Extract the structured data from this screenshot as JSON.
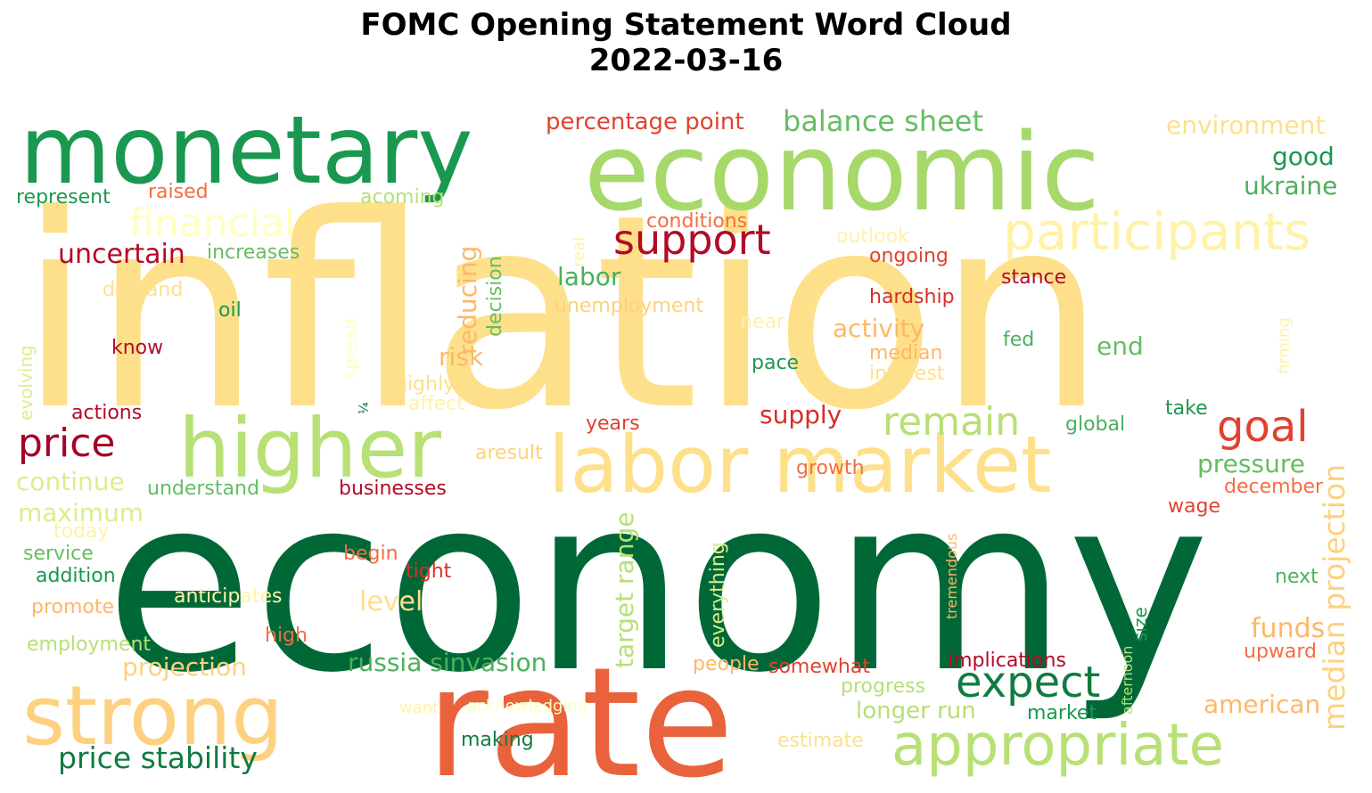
{
  "title": {
    "line1": "FOMC Opening Statement Word Cloud",
    "line2": "2022-03-16"
  },
  "words": [
    {
      "text": "inflation",
      "color": "#fee08b"
    },
    {
      "text": "economy",
      "color": "#006837"
    },
    {
      "text": "economic",
      "color": "#a6d96a"
    },
    {
      "text": "monetary",
      "color": "#1a9850"
    },
    {
      "text": "rate",
      "color": "#e9623b"
    },
    {
      "text": "higher",
      "color": "#b7e075"
    },
    {
      "text": "labor market",
      "color": "#fee08b"
    },
    {
      "text": "strong",
      "color": "#fdd17f"
    },
    {
      "text": "appropriate",
      "color": "#b7e075"
    },
    {
      "text": "participants",
      "color": "#fff2a8"
    },
    {
      "text": "financial",
      "color": "#ffffbf"
    },
    {
      "text": "support",
      "color": "#b10b26"
    },
    {
      "text": "price",
      "color": "#a50026"
    },
    {
      "text": "remain",
      "color": "#b7e075"
    },
    {
      "text": "goal",
      "color": "#e0422f"
    },
    {
      "text": "expect",
      "color": "#0f7c41"
    },
    {
      "text": "price stability",
      "color": "#0f7c41"
    },
    {
      "text": "balance sheet",
      "color": "#66bd63"
    },
    {
      "text": "percentage point",
      "color": "#e0422f"
    },
    {
      "text": "environment",
      "color": "#fee08b"
    },
    {
      "text": "good",
      "color": "#1a9850"
    },
    {
      "text": "ukraine",
      "color": "#4bb05c"
    },
    {
      "text": "represent",
      "color": "#1a9850"
    },
    {
      "text": "raised",
      "color": "#f46d43"
    },
    {
      "text": "acoming",
      "color": "#b7e075"
    },
    {
      "text": "uncertain",
      "color": "#b10b26"
    },
    {
      "text": "increases",
      "color": "#66bd63"
    },
    {
      "text": "conditions",
      "color": "#f46d43"
    },
    {
      "text": "outlook",
      "color": "#fff2a8"
    },
    {
      "text": "ongoing",
      "color": "#e0422f"
    },
    {
      "text": "stance",
      "color": "#b10b26"
    },
    {
      "text": "hardship",
      "color": "#d52f27"
    },
    {
      "text": "demand",
      "color": "#fee08b"
    },
    {
      "text": "oil",
      "color": "#1a9850"
    },
    {
      "text": "labor",
      "color": "#4bb05c"
    },
    {
      "text": "unemployment",
      "color": "#fdd17f"
    },
    {
      "text": "activity",
      "color": "#fdb768"
    },
    {
      "text": "median",
      "color": "#fdb768"
    },
    {
      "text": "interest",
      "color": "#fee08b"
    },
    {
      "text": "near",
      "color": "#fff2a8"
    },
    {
      "text": "fed",
      "color": "#4bb05c"
    },
    {
      "text": "end",
      "color": "#66bd63"
    },
    {
      "text": "know",
      "color": "#b10b26"
    },
    {
      "text": "risk",
      "color": "#fdb768"
    },
    {
      "text": "pace",
      "color": "#1a9850"
    },
    {
      "text": "highly",
      "color": "#fee08b"
    },
    {
      "text": "affect",
      "color": "#fff2a8"
    },
    {
      "text": "actions",
      "color": "#b10b26"
    },
    {
      "text": "supply",
      "color": "#d52f27"
    },
    {
      "text": "years",
      "color": "#e0422f"
    },
    {
      "text": "take",
      "color": "#1a9850"
    },
    {
      "text": "global",
      "color": "#4bb05c"
    },
    {
      "text": "aresult",
      "color": "#fdd17f"
    },
    {
      "text": "growth",
      "color": "#f46d43"
    },
    {
      "text": "pressure",
      "color": "#66bd63"
    },
    {
      "text": "december",
      "color": "#f46d43"
    },
    {
      "text": "continue",
      "color": "#d9ef8b"
    },
    {
      "text": "understand",
      "color": "#66bd63"
    },
    {
      "text": "businesses",
      "color": "#b10b26"
    },
    {
      "text": "wage",
      "color": "#e0422f"
    },
    {
      "text": "maximum",
      "color": "#d9ef8b"
    },
    {
      "text": "today",
      "color": "#fff2a8"
    },
    {
      "text": "service",
      "color": "#66bd63"
    },
    {
      "text": "addition",
      "color": "#1a9850"
    },
    {
      "text": "begin",
      "color": "#f46d43"
    },
    {
      "text": "tight",
      "color": "#d52f27"
    },
    {
      "text": "next",
      "color": "#4bb05c"
    },
    {
      "text": "promote",
      "color": "#fdb768"
    },
    {
      "text": "anticipates",
      "color": "#fff2a8"
    },
    {
      "text": "level",
      "color": "#fee08b"
    },
    {
      "text": "funds",
      "color": "#fdb768"
    },
    {
      "text": "upward",
      "color": "#f46d43"
    },
    {
      "text": "employment",
      "color": "#b7e075"
    },
    {
      "text": "high",
      "color": "#f46d43"
    },
    {
      "text": "projection",
      "color": "#fdd17f"
    },
    {
      "text": "russia sinvasion",
      "color": "#4bb05c"
    },
    {
      "text": "people",
      "color": "#fdb768"
    },
    {
      "text": "somewhat",
      "color": "#e0422f"
    },
    {
      "text": "implications",
      "color": "#b10b26"
    },
    {
      "text": "progress",
      "color": "#b7e075"
    },
    {
      "text": "american",
      "color": "#fdb768"
    },
    {
      "text": "longer run",
      "color": "#b7e075"
    },
    {
      "text": "market",
      "color": "#1a9850"
    },
    {
      "text": "want",
      "color": "#fff2a8"
    },
    {
      "text": "acknowledging",
      "color": "#ffffbf"
    },
    {
      "text": "making",
      "color": "#0f7c41"
    },
    {
      "text": "estimate",
      "color": "#fee08b"
    },
    {
      "text": "reducing",
      "color": "#fdb768"
    },
    {
      "text": "decision",
      "color": "#66bd63"
    },
    {
      "text": "real",
      "color": "#fff2a8"
    },
    {
      "text": "spread",
      "color": "#ffffbf"
    },
    {
      "text": "evolving",
      "color": "#d9ef8b"
    },
    {
      "text": "¼",
      "color": "#006837"
    },
    {
      "text": "target range",
      "color": "#b7e075"
    },
    {
      "text": "everything",
      "color": "#d9ef8b"
    },
    {
      "text": "tremendous",
      "color": "#fdb768"
    },
    {
      "text": "afternoon",
      "color": "#b7e075"
    },
    {
      "text": "size",
      "color": "#1a9850"
    },
    {
      "text": "median projection",
      "color": "#fdd17f"
    },
    {
      "text": "firming",
      "color": "#fff2a8"
    }
  ]
}
